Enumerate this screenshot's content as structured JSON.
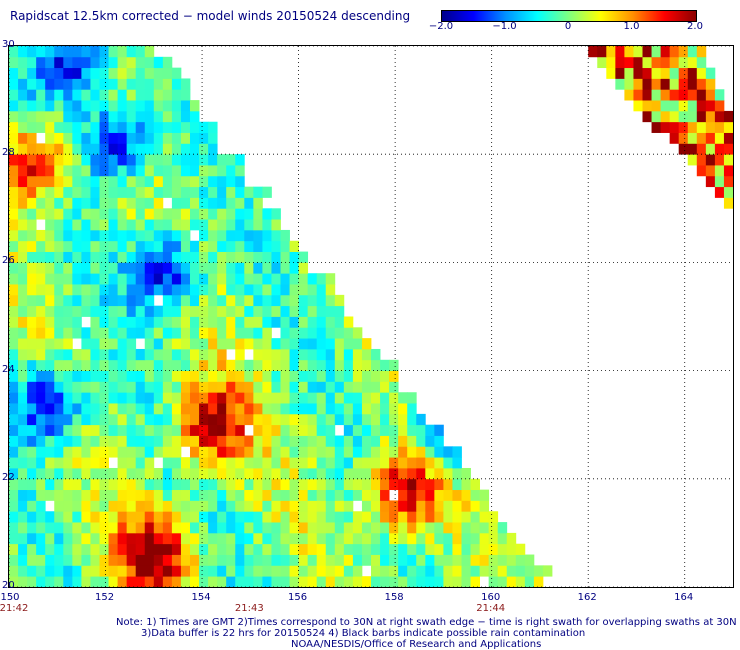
{
  "title": "Rapidscat 12.5km corrected − model winds 20150524 descending",
  "colorbar": {
    "ticks": [
      "−2.0",
      "−1.0",
      "0",
      "1.0",
      "2.0"
    ],
    "tick_values": [
      -2.0,
      -1.0,
      0,
      1.0,
      2.0
    ],
    "range": [
      -2.0,
      2.0
    ],
    "stops": [
      "#00008b",
      "#0000ff",
      "#0090ff",
      "#00ffff",
      "#7fff7f",
      "#ffff00",
      "#ff9000",
      "#ff0000",
      "#8b0000"
    ]
  },
  "axes": {
    "x_ticks": [
      "150",
      "152",
      "154",
      "156",
      "158",
      "160",
      "162",
      "164"
    ],
    "x_values": [
      150,
      152,
      154,
      156,
      158,
      160,
      162,
      164
    ],
    "x_range": [
      150,
      165
    ],
    "y_ticks": [
      "30",
      "28",
      "26",
      "24",
      "22",
      "20"
    ],
    "y_values": [
      30,
      28,
      26,
      24,
      22,
      20
    ],
    "y_range": [
      20,
      30
    ],
    "grid": "dotted"
  },
  "times": [
    {
      "label": "21:42",
      "lon": 150
    },
    {
      "label": "21:43",
      "lon": 155
    },
    {
      "label": "21:44",
      "lon": 160
    }
  ],
  "notes": [
    "Note: 1) Times are GMT 2)Times correspond to 30N at right swath edge − time is right swath for overlapping swaths at 30N",
    "3)Data buffer is 22 hrs for 20150524 4) Black barbs indicate possible rain contamination",
    "NOAA/NESDIS/Office of Research and Applications"
  ],
  "map_data": {
    "type": "heatmap",
    "variable": "wind speed difference (corrected minus model)",
    "lon_range": [
      150,
      165
    ],
    "lat_range": [
      20,
      30
    ],
    "main_swath": {
      "left_lon": 150,
      "top_edge_lon_at_30N": 153,
      "bottom_edge_lon_at_20N": 161.3
    },
    "second_swath": {
      "lon_at_30N": [
        161.8,
        165
      ],
      "lon_at_27N": 165
    },
    "anomalies": [
      {
        "lon": 150.5,
        "lat": 27.8,
        "value": 1.8
      },
      {
        "lon": 153.0,
        "lat": 20.6,
        "value": 2.0
      },
      {
        "lon": 154.2,
        "lat": 23.0,
        "value": 1.9
      },
      {
        "lon": 158.2,
        "lat": 21.8,
        "value": 2.0
      },
      {
        "lon": 152.2,
        "lat": 28.2,
        "value": -1.6
      },
      {
        "lon": 153.2,
        "lat": 25.8,
        "value": -1.7
      },
      {
        "lon": 150.8,
        "lat": 23.4,
        "value": -1.7
      },
      {
        "lon": 159.2,
        "lat": 22.9,
        "value": -1.9
      },
      {
        "lon": 151.2,
        "lat": 29.7,
        "value": -1.8
      },
      {
        "lon": 164.5,
        "lat": 29.4,
        "value": 1.8
      }
    ]
  }
}
